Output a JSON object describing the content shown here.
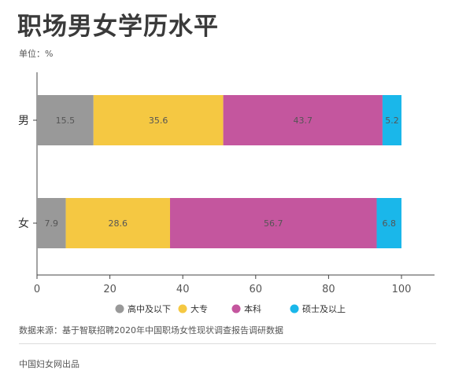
{
  "title": "职场男女学历水平",
  "unit_label": "单位：%",
  "source": "数据来源：基于智联招聘2020年中国职场女性现状调查报告调研数据",
  "credit": "中国妇女网出品",
  "chart_data": {
    "type": "bar",
    "orientation": "horizontal",
    "stacked": true,
    "categories": [
      "男",
      "女"
    ],
    "series": [
      {
        "name": "高中及以下",
        "color": "#999999",
        "values": [
          15.5,
          7.9
        ]
      },
      {
        "name": "大专",
        "color": "#f5c842",
        "values": [
          35.6,
          28.6
        ]
      },
      {
        "name": "本科",
        "color": "#c4569e",
        "values": [
          43.7,
          56.7
        ]
      },
      {
        "name": "硕士及以上",
        "color": "#1ab7ea",
        "values": [
          5.2,
          6.8
        ]
      }
    ],
    "xlim": [
      0,
      100
    ],
    "xticks": [
      0,
      20,
      40,
      60,
      80,
      100
    ],
    "grid": false,
    "legend": "bottom"
  }
}
